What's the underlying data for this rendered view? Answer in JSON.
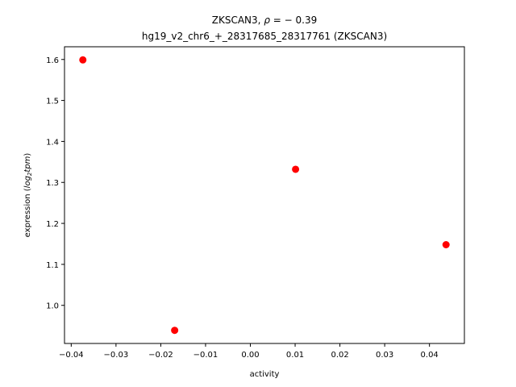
{
  "chart_data": {
    "type": "scatter",
    "title_gene": "ZKSCAN3, ",
    "title_rho": "ρ",
    "title_rho_value": " = − 0.39",
    "title_line2": "hg19_v2_chr6_+_28317685_28317761 (ZKSCAN3)",
    "xlabel": "activity",
    "ylabel_main": "expression (",
    "ylabel_log": "log",
    "ylabel_sub": "2",
    "ylabel_tpm": "tpm",
    "ylabel_close": ")",
    "xlim": [
      -0.0415,
      0.0478
    ],
    "ylim": [
      0.907,
      1.631
    ],
    "xticks": [
      -0.04,
      -0.03,
      -0.02,
      -0.01,
      0.0,
      0.01,
      0.02,
      0.03,
      0.04
    ],
    "xtick_labels": [
      "−0.04",
      "−0.03",
      "−0.02",
      "−0.01",
      "0.00",
      "0.01",
      "0.02",
      "0.03",
      "0.04"
    ],
    "yticks": [
      1.0,
      1.1,
      1.2,
      1.3,
      1.4,
      1.5,
      1.6
    ],
    "ytick_labels": [
      "1.0",
      "1.1",
      "1.2",
      "1.3",
      "1.4",
      "1.5",
      "1.6"
    ],
    "grid": false,
    "marker_color": "#ff0000",
    "points": [
      {
        "x": -0.0374,
        "y": 1.599
      },
      {
        "x": -0.0169,
        "y": 0.939
      },
      {
        "x": 0.0101,
        "y": 1.332
      },
      {
        "x": 0.0437,
        "y": 1.148
      }
    ]
  }
}
